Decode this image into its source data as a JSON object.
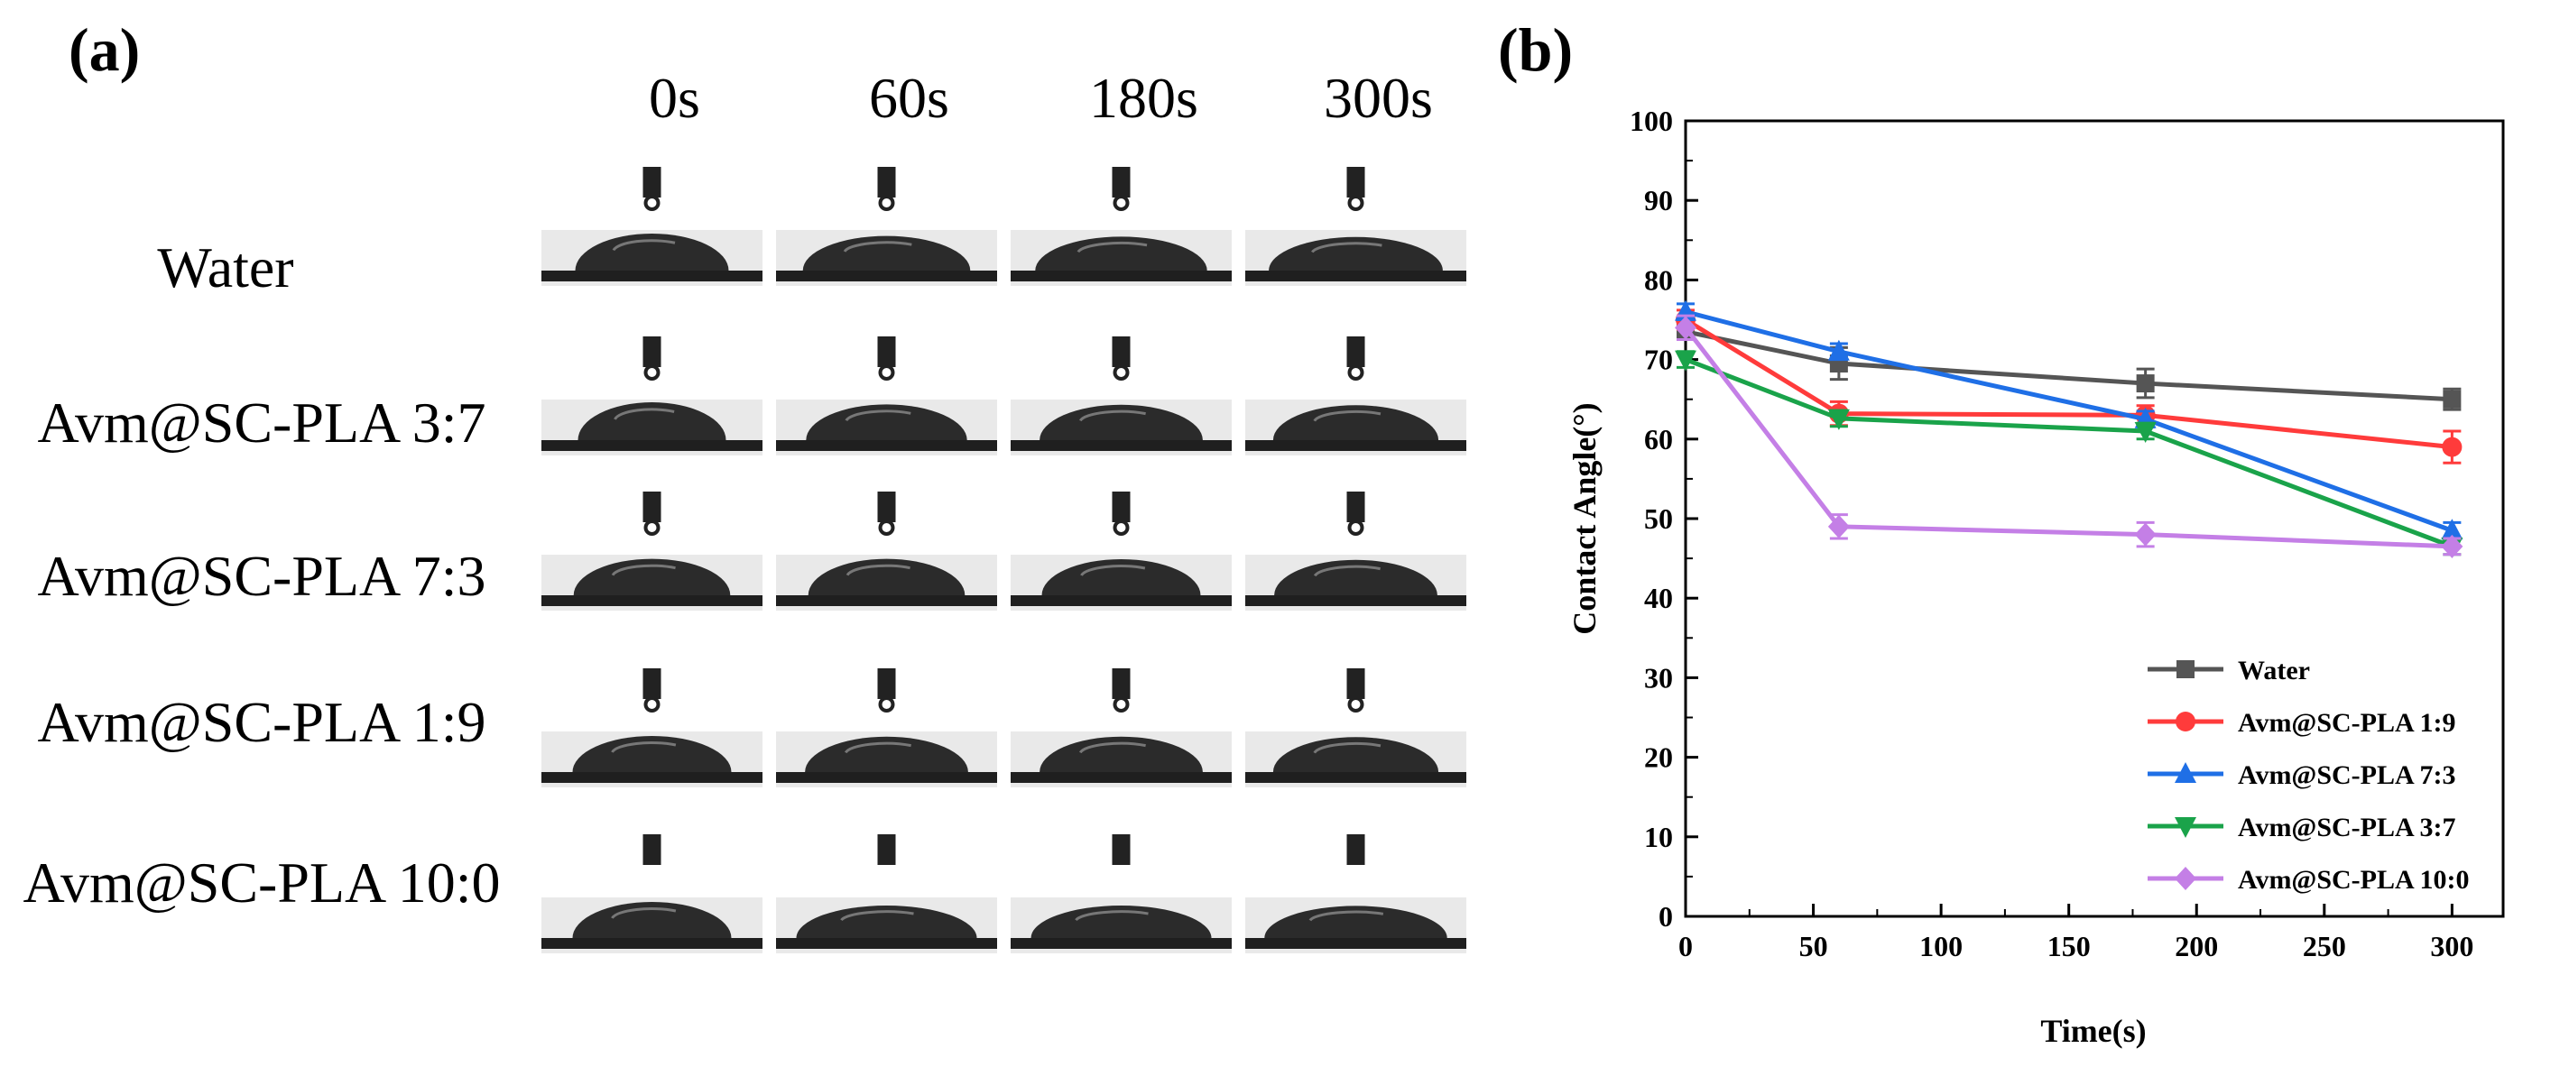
{
  "panel_a": {
    "letter": "(a)",
    "columns": [
      "0s",
      "60s",
      "180s",
      "300s"
    ],
    "rows": [
      {
        "label": "Water",
        "drop_height": [
          0.55,
          0.42,
          0.38,
          0.36
        ]
      },
      {
        "label": "Avm@SC-PLA 3:7",
        "drop_height": [
          0.6,
          0.48,
          0.46,
          0.44
        ]
      },
      {
        "label": "Avm@SC-PLA 7:3",
        "drop_height": [
          0.52,
          0.52,
          0.5,
          0.46
        ]
      },
      {
        "label": "Avm@SC-PLA 1:9",
        "drop_height": [
          0.5,
          0.46,
          0.46,
          0.44
        ]
      },
      {
        "label": "Avm@SC-PLA 10:0",
        "drop_height": [
          0.5,
          0.3,
          0.3,
          0.28
        ]
      }
    ],
    "colors": {
      "droplet": "#2b2b2b",
      "background": "#e9e9e9",
      "substrate": "#1f1f1f"
    }
  },
  "panel_b": {
    "letter": "(b)"
  },
  "chart_data": {
    "type": "line",
    "title": "",
    "xlabel": "Time(s)",
    "ylabel": "Contact Angle(°)",
    "xlim": [
      0,
      320
    ],
    "ylim": [
      0,
      100
    ],
    "xticks": [
      0,
      50,
      100,
      150,
      200,
      250,
      300
    ],
    "yticks": [
      0,
      10,
      20,
      30,
      40,
      50,
      60,
      70,
      80,
      90,
      100
    ],
    "x": [
      0,
      60,
      180,
      300
    ],
    "grid": false,
    "legend_position": "bottom-right",
    "series": [
      {
        "name": "Water",
        "color": "#555555",
        "marker": "square",
        "values": [
          73.5,
          69.5,
          67,
          65
        ],
        "errors": [
          1,
          2,
          1.8,
          1.3
        ]
      },
      {
        "name": "Avm@SC-PLA 1:9",
        "color": "#ff3b3b",
        "marker": "circle",
        "values": [
          75,
          63.2,
          63,
          59
        ],
        "errors": [
          1.2,
          1.5,
          1.2,
          2
        ]
      },
      {
        "name": "Avm@SC-PLA 7:3",
        "color": "#1f6fe6",
        "marker": "triangle-up",
        "values": [
          76,
          71,
          62.5,
          48.5
        ],
        "errors": [
          1,
          1,
          1,
          1
        ]
      },
      {
        "name": "Avm@SC-PLA 3:7",
        "color": "#1aa34a",
        "marker": "triangle-down",
        "values": [
          70,
          62.6,
          61,
          46.5
        ],
        "errors": [
          1,
          1,
          1,
          1
        ]
      },
      {
        "name": "Avm@SC-PLA 10:0",
        "color": "#c47fe6",
        "marker": "diamond",
        "values": [
          74,
          49,
          48,
          46.5
        ],
        "errors": [
          1.5,
          1.5,
          1.5,
          1
        ]
      }
    ]
  }
}
